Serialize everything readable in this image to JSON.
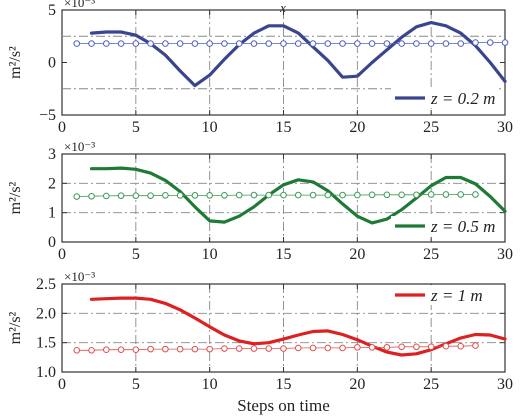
{
  "chart_data": [
    {
      "type": "line",
      "title": "",
      "top_label": "x",
      "exponent_label": "×10⁻³",
      "ylabel": "m²/s²",
      "xlim": [
        0,
        30
      ],
      "ylim": [
        -5,
        5
      ],
      "x_ticks": [
        0,
        5,
        10,
        15,
        20,
        25,
        30
      ],
      "x_tick_labels": [
        "0",
        "5",
        "10",
        "15",
        "20",
        "25",
        "30"
      ],
      "y_ticks": [
        -5,
        0,
        5
      ],
      "y_tick_labels": [
        "−5",
        "0",
        "5"
      ],
      "y_grid": [
        2.5,
        -2.5
      ],
      "grid": true,
      "legend_position": "lower-right",
      "series": [
        {
          "name": "z = 0.2 m",
          "style": "line",
          "color": "#3a4590",
          "x": [
            2,
            3,
            4,
            5,
            6,
            7,
            8,
            9,
            10,
            11,
            12,
            13,
            14,
            15,
            16,
            17,
            18,
            19,
            20,
            21,
            22,
            23,
            24,
            25,
            26,
            27,
            28,
            29,
            30
          ],
          "y": [
            2.8,
            2.9,
            2.9,
            2.6,
            1.8,
            0.7,
            -0.8,
            -2.2,
            -1.2,
            0.3,
            1.7,
            2.8,
            3.5,
            3.5,
            2.8,
            1.5,
            0.2,
            -1.4,
            -1.3,
            0.0,
            1.2,
            2.4,
            3.4,
            3.8,
            3.5,
            2.8,
            1.6,
            0.0,
            -1.8
          ]
        },
        {
          "name": "",
          "style": "marker",
          "color": "#4f62c0",
          "x": [
            1,
            2,
            3,
            4,
            5,
            6,
            7,
            8,
            9,
            10,
            11,
            12,
            13,
            14,
            15,
            16,
            17,
            18,
            19,
            20,
            21,
            22,
            23,
            24,
            25,
            26,
            27,
            28,
            29,
            30
          ],
          "y": [
            1.8,
            1.8,
            1.8,
            1.8,
            1.8,
            1.8,
            1.8,
            1.8,
            1.8,
            1.8,
            1.8,
            1.8,
            1.8,
            1.8,
            1.8,
            1.8,
            1.8,
            1.8,
            1.8,
            1.8,
            1.8,
            1.8,
            1.8,
            1.8,
            1.8,
            1.8,
            1.8,
            1.9,
            1.9,
            1.9
          ]
        }
      ]
    },
    {
      "type": "line",
      "title": "",
      "exponent_label": "×10⁻³",
      "ylabel": "m²/s²",
      "xlim": [
        0,
        30
      ],
      "ylim": [
        0,
        3
      ],
      "x_ticks": [
        0,
        5,
        10,
        15,
        20,
        25,
        30
      ],
      "x_tick_labels": [
        "0",
        "5",
        "10",
        "15",
        "20",
        "25",
        "30"
      ],
      "y_ticks": [
        0,
        1,
        2,
        3
      ],
      "y_tick_labels": [
        "0",
        "1",
        "2",
        "3"
      ],
      "y_grid": [
        2,
        1
      ],
      "grid": true,
      "legend_position": "lower-right",
      "series": [
        {
          "name": "z = 0.5 m",
          "style": "line",
          "color": "#1f7a35",
          "x": [
            2,
            3,
            4,
            5,
            6,
            7,
            8,
            9,
            10,
            11,
            12,
            13,
            14,
            15,
            16,
            17,
            18,
            19,
            20,
            21,
            22,
            23,
            24,
            25,
            26,
            27,
            28,
            29,
            30
          ],
          "y": [
            2.5,
            2.5,
            2.52,
            2.48,
            2.35,
            2.1,
            1.72,
            1.2,
            0.72,
            0.68,
            0.88,
            1.2,
            1.6,
            1.95,
            2.12,
            2.05,
            1.75,
            1.3,
            0.88,
            0.65,
            0.78,
            1.1,
            1.5,
            1.92,
            2.2,
            2.2,
            1.98,
            1.55,
            1.05
          ]
        },
        {
          "name": "",
          "style": "marker",
          "color": "#3c9a55",
          "x": [
            1,
            2,
            3,
            4,
            5,
            6,
            7,
            8,
            9,
            10,
            11,
            12,
            13,
            14,
            15,
            16,
            17,
            18,
            19,
            20,
            21,
            22,
            23,
            24,
            25,
            26,
            27,
            28
          ],
          "y": [
            1.55,
            1.56,
            1.57,
            1.58,
            1.58,
            1.58,
            1.59,
            1.59,
            1.59,
            1.59,
            1.59,
            1.6,
            1.6,
            1.6,
            1.6,
            1.6,
            1.6,
            1.6,
            1.6,
            1.6,
            1.61,
            1.61,
            1.61,
            1.61,
            1.62,
            1.62,
            1.62,
            1.62
          ]
        }
      ]
    },
    {
      "type": "line",
      "title": "",
      "exponent_label": "×10⁻³",
      "ylabel": "m²/s²",
      "xlabel": "Steps on time",
      "xlim": [
        0,
        30
      ],
      "ylim": [
        1.0,
        2.5
      ],
      "x_ticks": [
        0,
        5,
        10,
        15,
        20,
        25,
        30
      ],
      "x_tick_labels": [
        "0",
        "5",
        "10",
        "15",
        "20",
        "25",
        "30"
      ],
      "y_ticks": [
        1.0,
        1.5,
        2.0,
        2.5
      ],
      "y_tick_labels": [
        "1.0",
        "1.5",
        "2.0",
        "2.5"
      ],
      "y_grid": [
        2.0,
        1.5
      ],
      "grid": true,
      "legend_position": "top-right",
      "series": [
        {
          "name": "z = 1 m",
          "style": "line",
          "color": "#dd2020",
          "x": [
            2,
            3,
            4,
            5,
            6,
            7,
            8,
            9,
            10,
            11,
            12,
            13,
            14,
            15,
            16,
            17,
            18,
            19,
            20,
            21,
            22,
            23,
            24,
            25,
            26,
            27,
            28,
            29,
            30
          ],
          "y": [
            2.24,
            2.25,
            2.26,
            2.26,
            2.24,
            2.17,
            2.06,
            1.92,
            1.77,
            1.63,
            1.53,
            1.48,
            1.5,
            1.56,
            1.63,
            1.69,
            1.7,
            1.64,
            1.55,
            1.44,
            1.34,
            1.29,
            1.31,
            1.38,
            1.48,
            1.58,
            1.64,
            1.63,
            1.56
          ]
        },
        {
          "name": "",
          "style": "marker",
          "color": "#e05050",
          "x": [
            1,
            2,
            3,
            4,
            5,
            6,
            7,
            8,
            9,
            10,
            11,
            12,
            13,
            14,
            15,
            16,
            17,
            18,
            19,
            20,
            21,
            22,
            23,
            24,
            25,
            26,
            27,
            28
          ],
          "y": [
            1.37,
            1.37,
            1.38,
            1.38,
            1.38,
            1.39,
            1.39,
            1.39,
            1.39,
            1.39,
            1.4,
            1.4,
            1.4,
            1.4,
            1.4,
            1.41,
            1.41,
            1.41,
            1.41,
            1.42,
            1.42,
            1.42,
            1.43,
            1.43,
            1.43,
            1.44,
            1.44,
            1.45
          ]
        }
      ]
    }
  ]
}
